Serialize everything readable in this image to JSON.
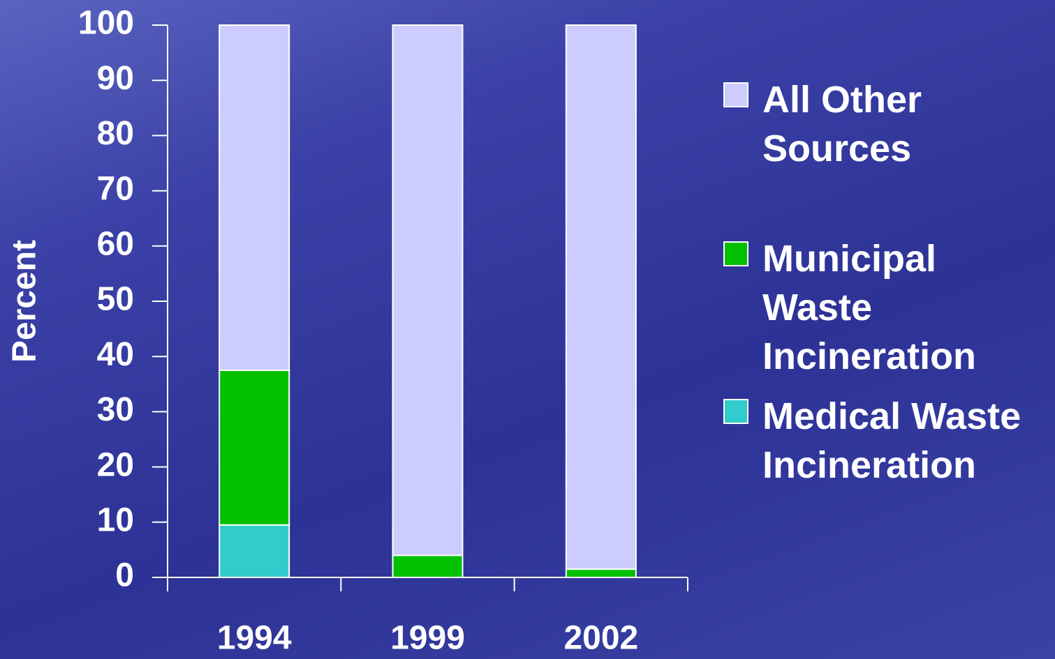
{
  "chart_data": {
    "type": "stacked_bar",
    "y_label": "Percent",
    "categories": [
      "1994",
      "1999",
      "2002"
    ],
    "series": [
      {
        "name": "Medical Waste Incineration",
        "color": "#33cccc",
        "values": [
          9.5,
          0,
          0
        ]
      },
      {
        "name": "Municipal Waste Incineration",
        "color": "#00c000",
        "values": [
          28,
          4,
          1.5
        ]
      },
      {
        "name": "All Other Sources",
        "color": "#ccccff",
        "values": [
          62.5,
          96,
          98.5
        ]
      }
    ],
    "ylim": [
      0,
      100
    ],
    "yticks": [
      0,
      10,
      20,
      30,
      40,
      50,
      60,
      70,
      80,
      90,
      100
    ]
  }
}
